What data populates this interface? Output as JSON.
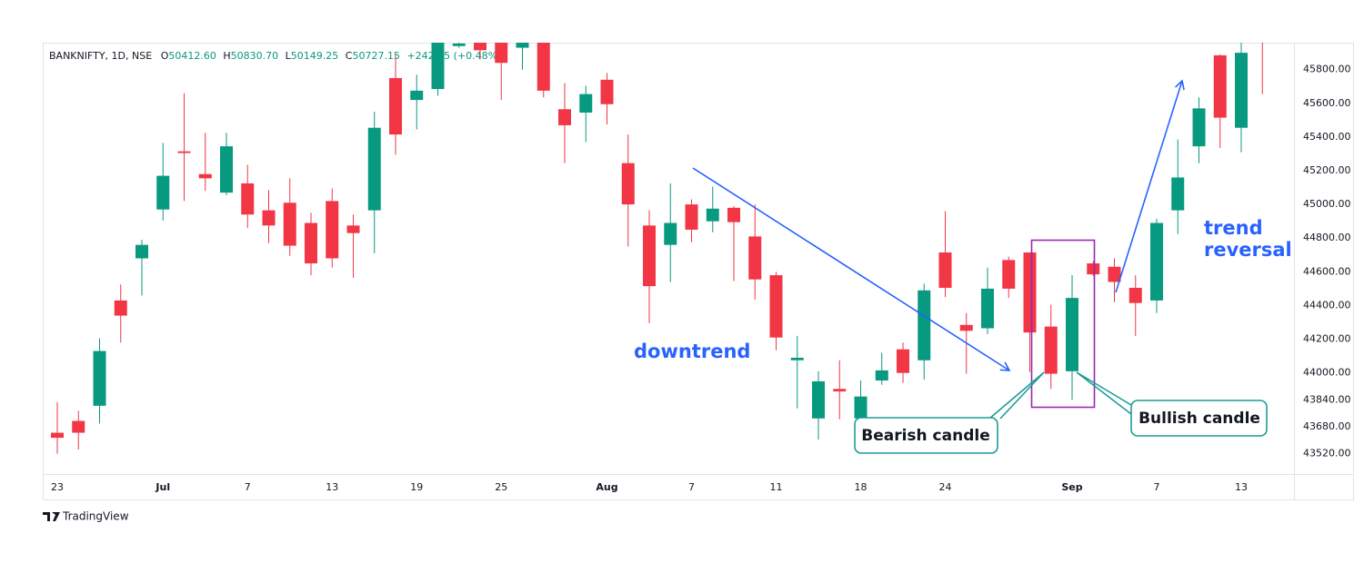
{
  "chart_data": {
    "type": "candlestick",
    "header": {
      "symbol": "BANKNIFTY, 1D, NSE",
      "fields": [
        {
          "key": "O",
          "value": "50412.60"
        },
        {
          "key": "H",
          "value": "50830.70"
        },
        {
          "key": "L",
          "value": "50149.25"
        },
        {
          "key": "C",
          "value": "50727.15"
        }
      ],
      "change": "+242.65 (+0.48%)"
    },
    "categories": [
      "23",
      null,
      null,
      null,
      null,
      "Jul",
      null,
      null,
      null,
      "7",
      null,
      null,
      null,
      "13",
      null,
      null,
      null,
      "19",
      null,
      null,
      null,
      "25",
      null,
      null,
      null,
      null,
      "Aug",
      null,
      null,
      null,
      "7",
      null,
      null,
      null,
      "11",
      null,
      null,
      null,
      "18",
      null,
      null,
      null,
      "24",
      null,
      null,
      null,
      null,
      null,
      "Sep",
      null,
      null,
      null,
      "7",
      null,
      null,
      null,
      "13",
      null
    ],
    "open": [
      43645,
      43715,
      43805,
      44430,
      44680,
      44970,
      45315,
      45180,
      45070,
      45125,
      44965,
      45010,
      44890,
      45020,
      44875,
      44965,
      45750,
      45620,
      45685,
      45940,
      46000,
      45990,
      45930,
      46010,
      45565,
      45545,
      45740,
      45245,
      44875,
      44760,
      45000,
      44900,
      44980,
      44810,
      44580,
      44075,
      43730,
      43905,
      43730,
      43955,
      44140,
      44075,
      44715,
      44285,
      44265,
      44670,
      44715,
      44275,
      44010,
      44650,
      44630,
      44505,
      44430,
      44965,
      45345,
      45885,
      45455,
      46100
    ],
    "high": [
      43825,
      43775,
      44205,
      44525,
      44790,
      45365,
      45660,
      45425,
      45425,
      45235,
      45085,
      45155,
      44950,
      45095,
      44940,
      45550,
      45890,
      45770,
      46000,
      46050,
      46050,
      46020,
      46040,
      46060,
      45720,
      45705,
      45780,
      45415,
      44965,
      45125,
      45030,
      45105,
      44990,
      45000,
      44600,
      44220,
      44010,
      44075,
      43955,
      44120,
      44180,
      44530,
      44960,
      44355,
      44625,
      44690,
      44715,
      44405,
      44580,
      44665,
      44680,
      44580,
      44915,
      45385,
      45635,
      45890,
      46000,
      46150
    ],
    "low": [
      43520,
      43545,
      43700,
      44180,
      44460,
      44905,
      45020,
      45080,
      45055,
      44860,
      44770,
      44695,
      44580,
      44625,
      44565,
      44710,
      45295,
      45445,
      45645,
      45930,
      45860,
      45620,
      45800,
      45635,
      45245,
      45370,
      45475,
      44750,
      44295,
      44540,
      44775,
      44835,
      44545,
      44435,
      44135,
      43790,
      43605,
      43725,
      43680,
      43930,
      43940,
      43960,
      44450,
      43995,
      44230,
      44445,
      44005,
      43905,
      43840,
      44575,
      44420,
      44220,
      44355,
      44825,
      45245,
      45335,
      45310,
      45655
    ],
    "close": [
      43615,
      43645,
      44130,
      44340,
      44760,
      45170,
      45305,
      45155,
      45345,
      44940,
      44875,
      44755,
      44650,
      44680,
      44830,
      45455,
      45415,
      45675,
      45960,
      45955,
      45915,
      45840,
      45990,
      45675,
      45470,
      45655,
      45595,
      45000,
      44515,
      44890,
      44850,
      44975,
      44895,
      44555,
      44210,
      44090,
      43950,
      43890,
      43860,
      44015,
      44000,
      44490,
      44505,
      44250,
      44500,
      44500,
      44240,
      43995,
      44445,
      44585,
      44540,
      44415,
      44890,
      45160,
      45570,
      45515,
      45900,
      45990
    ],
    "up_color": "#089981",
    "down_color": "#f23645",
    "ylim": [
      43400,
      45960
    ],
    "yticks": [
      {
        "value": 45800,
        "label": "45800.00"
      },
      {
        "value": 45600,
        "label": "45600.00"
      },
      {
        "value": 45400,
        "label": "45400.00"
      },
      {
        "value": 45200,
        "label": "45200.00"
      },
      {
        "value": 45000,
        "label": "45000.00"
      },
      {
        "value": 44800,
        "label": "44800.00"
      },
      {
        "value": 44600,
        "label": "44600.00"
      },
      {
        "value": 44400,
        "label": "44400.00"
      },
      {
        "value": 44200,
        "label": "44200.00"
      },
      {
        "value": 44000,
        "label": "44000.00"
      },
      {
        "value": 43840,
        "label": "43840.00"
      },
      {
        "value": 43680,
        "label": "43680.00"
      },
      {
        "value": 43520,
        "label": "43520.00"
      }
    ],
    "grid": false,
    "annotations": {
      "downtrend": "downtrend",
      "trend_reversal": [
        "trend",
        "reversal"
      ],
      "bearish": "Bearish candle",
      "bullish": "Bullish candle"
    }
  },
  "branding": "TradingView"
}
